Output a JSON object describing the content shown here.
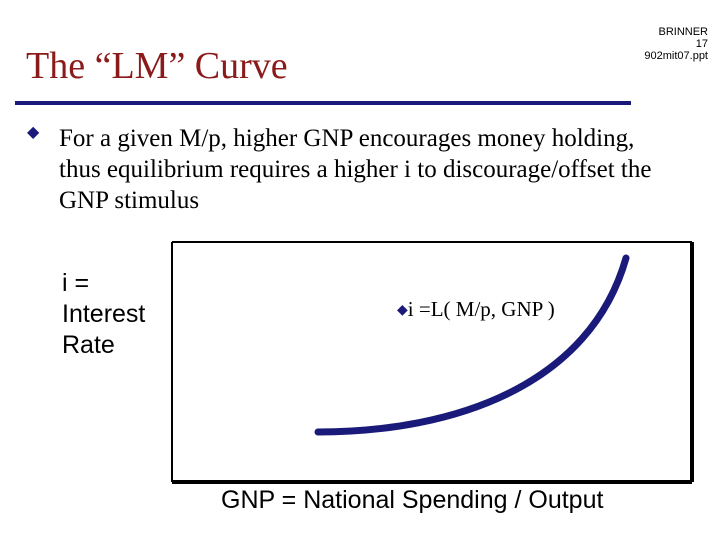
{
  "slide": {
    "title": "The “LM” Curve",
    "meta": [
      "BRINNER",
      "17",
      "902mit07.ppt"
    ],
    "bullet_text": "For a given M/p, higher GNP encourages money holding, thus equilibrium requires a higher i to discourage/offset the GNP stimulus",
    "y_axis_label": "i =\nInterest\nRate",
    "equation": "i =L( M/p, GNP )",
    "x_axis_label": "GNP = National Spending / Output"
  },
  "colors": {
    "title": "#8b1a1a",
    "rule": "#1a1a7a",
    "curve": "#1a1a7a",
    "bullet": "#1a1a7a"
  },
  "icons": {
    "bullet": "diamond-bullet-icon"
  }
}
